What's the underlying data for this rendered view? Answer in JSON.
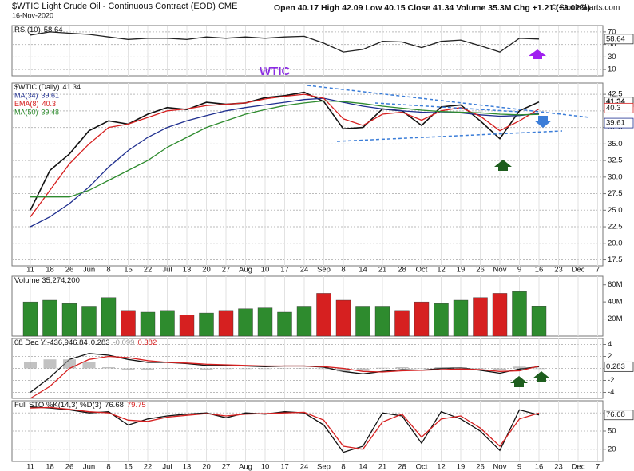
{
  "header": {
    "title": "$WTIC Light Crude Oil - Continuous Contract (EOD) CME",
    "date": "16-Nov-2020",
    "quote": "Open 40.17 High 42.09 Low 40.15 Close 41.34 Volume 35.3M Chg +1.21 (+3.02%)",
    "credit": "© StockCharts.com"
  },
  "chart_data": [
    {
      "type": "line",
      "title": "RSI(10)",
      "ylim": [
        0,
        80
      ],
      "yticks": [
        10,
        30,
        50,
        70
      ],
      "grid": true,
      "series": [
        {
          "color": "#222222",
          "values": [
            65,
            70,
            68,
            66,
            62,
            58,
            60,
            60,
            58,
            62,
            60,
            62,
            60,
            62,
            63,
            52,
            38,
            42,
            55,
            54,
            45,
            55,
            57,
            48,
            38,
            60,
            58.64,
            null,
            null,
            null
          ]
        }
      ]
    },
    {
      "type": "line",
      "annotation": "WTIC",
      "ylim": [
        16.6,
        44.2
      ],
      "yticks": [
        {
          "value": 17.5,
          "label": "17.5"
        },
        {
          "value": 20,
          "label": "20.0"
        },
        {
          "value": 22.5,
          "label": "22.5"
        },
        {
          "value": 25,
          "label": "25.0"
        },
        {
          "value": 27.5,
          "label": "27.5"
        },
        {
          "value": 30,
          "label": "30.0"
        },
        {
          "value": 32.5,
          "label": "32.5"
        },
        {
          "value": 35,
          "label": "35.0"
        },
        {
          "value": 37.5,
          "label": "37.5"
        },
        {
          "value": 40,
          "label": "40.0"
        },
        {
          "value": 42.5,
          "label": "42.5"
        }
      ],
      "grid": true,
      "categories": [
        "11",
        "18",
        "26",
        "Jun",
        "8",
        "15",
        "22",
        "Jul",
        "13",
        "20",
        "27",
        "Aug",
        "10",
        "17",
        "24",
        "Sep",
        "8",
        "14",
        "21",
        "28",
        "Oct",
        "12",
        "19",
        "26",
        "Nov",
        "9",
        "16",
        "23",
        "Dec",
        "7"
      ],
      "series": [
        {
          "name": "$WTIC (Daily)",
          "color": "#111111",
          "values": [
            25.0,
            31.0,
            33.5,
            37.0,
            38.5,
            38.0,
            39.5,
            40.5,
            40.2,
            41.3,
            41.0,
            41.2,
            42.0,
            42.3,
            42.8,
            41.4,
            37.3,
            37.5,
            40.3,
            40.0,
            37.8,
            40.6,
            40.9,
            38.5,
            35.8,
            40.0,
            41.34,
            null,
            null,
            null
          ]
        },
        {
          "name": "MA(34)",
          "color": "#1f2f8f",
          "values": [
            22.5,
            24,
            26,
            28.5,
            31.5,
            34,
            36,
            37.5,
            38.5,
            39.3,
            40,
            40.5,
            40.9,
            41.3,
            41.7,
            41.9,
            41.3,
            40.7,
            40.3,
            40,
            39.8,
            39.7,
            39.7,
            39.4,
            39.2,
            39.3,
            39.61,
            null,
            null,
            null
          ]
        },
        {
          "name": "EMA(8)",
          "color": "#d62020",
          "values": [
            24,
            28,
            32,
            35,
            37.5,
            38,
            39,
            40,
            40.3,
            40.8,
            41,
            41.2,
            41.8,
            42.2,
            42.5,
            41.9,
            38.8,
            37.8,
            39.5,
            39.8,
            38.6,
            40,
            40.5,
            39.2,
            37,
            38.5,
            40.3,
            null,
            null,
            null
          ]
        },
        {
          "name": "MA(50)",
          "color": "#2e8b2e",
          "values": [
            27,
            27,
            27,
            28,
            29.5,
            31,
            32.5,
            34.5,
            36,
            37.5,
            38.5,
            39.5,
            40.2,
            40.8,
            41.2,
            41.5,
            41.4,
            41.1,
            40.7,
            40.4,
            40.1,
            39.9,
            39.8,
            39.7,
            39.5,
            39.4,
            39.48,
            null,
            null,
            null
          ]
        }
      ]
    },
    {
      "type": "bar",
      "title": "Volume 35,274,200",
      "ylim": [
        0,
        70000000
      ],
      "yticks": [
        {
          "value": 20000000,
          "label": "20M"
        },
        {
          "value": 40000000,
          "label": "40M"
        },
        {
          "value": 60000000,
          "label": "60M"
        }
      ],
      "colors": [
        "#2e8b2e",
        "#d62020"
      ],
      "series": [
        {
          "values": [
            40000000,
            42000000,
            38000000,
            35000000,
            45000000,
            30000000,
            28000000,
            30000000,
            25000000,
            27000000,
            30000000,
            32000000,
            33000000,
            28000000,
            35000000,
            50000000,
            42000000,
            35000000,
            35000000,
            30000000,
            40000000,
            38000000,
            42000000,
            45000000,
            50000000,
            52000000,
            35274200,
            null,
            null,
            null
          ]
        }
      ]
    },
    {
      "type": "line",
      "title": "08 Dec Y:-436,946.84",
      "ylim": [
        -5,
        5
      ],
      "yticks": [
        -4,
        -2,
        0,
        2,
        4
      ],
      "grid": true,
      "series": [
        {
          "color": "#111111",
          "values": [
            -4,
            -1.5,
            1.5,
            2.5,
            2.2,
            1.5,
            1,
            1,
            0.8,
            0.5,
            0.5,
            0.4,
            0.3,
            0.4,
            0.4,
            0.2,
            -0.5,
            -0.9,
            -0.5,
            -0.2,
            -0.3,
            0,
            0.1,
            -0.3,
            -0.8,
            -0.1,
            0.283,
            null,
            null,
            null
          ]
        },
        {
          "color": "#999999",
          "style": "bar",
          "values": [
            1,
            1.5,
            1.5,
            1,
            0.2,
            -0.3,
            -0.3,
            0,
            -0.1,
            -0.2,
            -0.1,
            -0.1,
            -0.1,
            0,
            0,
            -0.1,
            -0.5,
            -0.4,
            0.1,
            0.2,
            0,
            0.2,
            0.2,
            -0.1,
            -0.3,
            0.3,
            -0.099,
            null,
            null,
            null
          ]
        },
        {
          "color": "#d62020",
          "values": [
            -5,
            -3,
            0,
            1.5,
            2,
            1.8,
            1.3,
            1,
            0.9,
            0.7,
            0.6,
            0.5,
            0.4,
            0.4,
            0.4,
            0.3,
            0,
            -0.5,
            -0.6,
            -0.4,
            -0.3,
            -0.2,
            -0.1,
            -0.2,
            -0.5,
            -0.4,
            0.382,
            null,
            null,
            null
          ]
        }
      ]
    },
    {
      "type": "line",
      "title": "Full STO %K(14,3) %D(3)",
      "ylim": [
        0,
        100
      ],
      "yticks": [
        20,
        50,
        80
      ],
      "grid": true,
      "categories": [
        "11",
        "18",
        "26",
        "Jun",
        "8",
        "15",
        "22",
        "Jul",
        "13",
        "20",
        "27",
        "Aug",
        "10",
        "17",
        "24",
        "Sep",
        "8",
        "14",
        "21",
        "28",
        "Oct",
        "12",
        "19",
        "26",
        "Nov",
        "9",
        "16",
        "23",
        "Dec",
        "7"
      ],
      "series": [
        {
          "color": "#111111",
          "values": [
            90,
            88,
            85,
            80,
            82,
            60,
            70,
            75,
            78,
            80,
            72,
            80,
            78,
            82,
            80,
            60,
            15,
            25,
            80,
            75,
            30,
            82,
            70,
            50,
            18,
            85,
            76.68,
            null,
            null,
            null
          ]
        },
        {
          "color": "#d62020",
          "values": [
            88,
            89,
            86,
            82,
            80,
            68,
            66,
            73,
            76,
            79,
            75,
            78,
            79,
            80,
            81,
            68,
            25,
            20,
            65,
            78,
            40,
            70,
            75,
            55,
            25,
            70,
            79.75,
            null,
            null,
            null
          ]
        }
      ]
    }
  ]
}
